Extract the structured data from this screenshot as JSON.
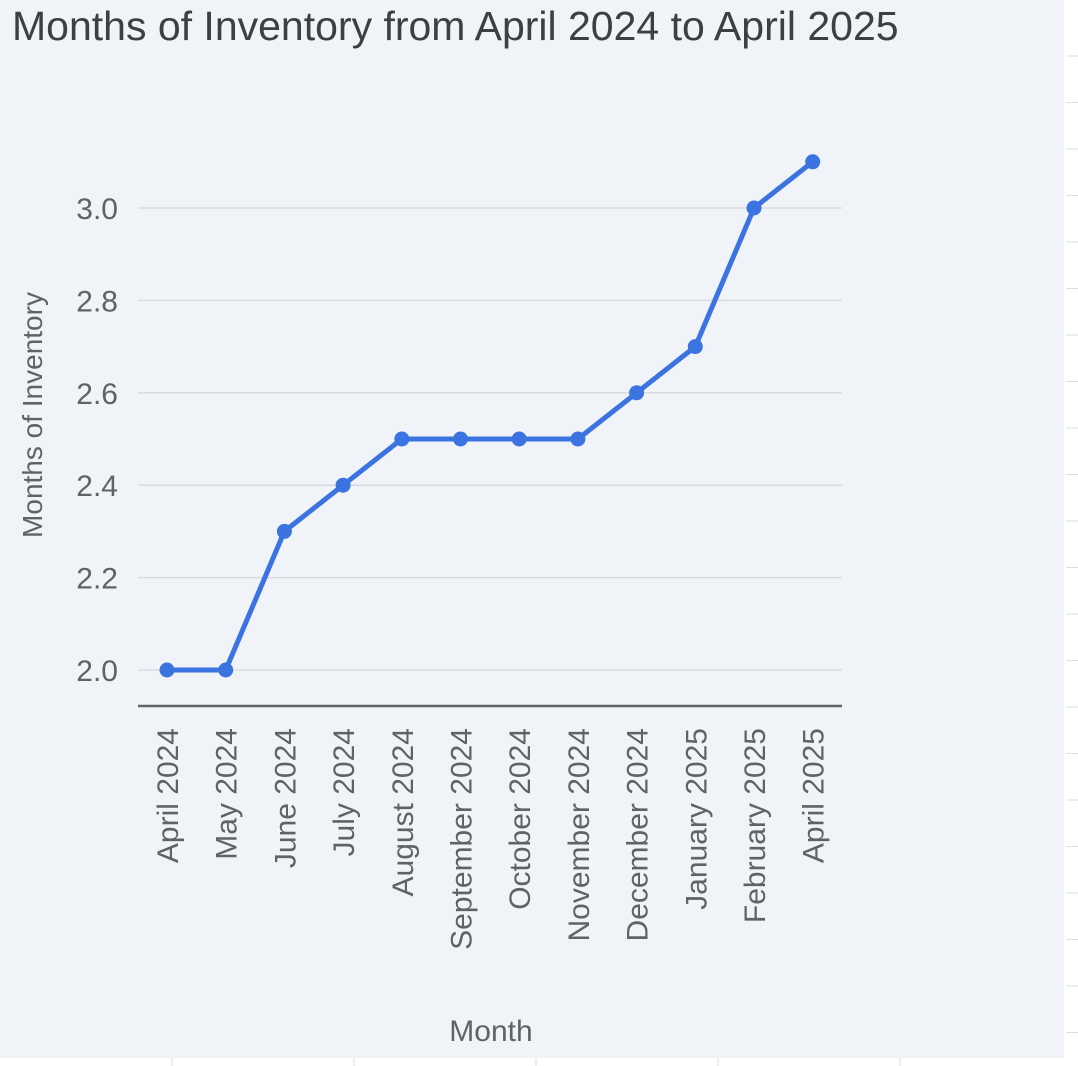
{
  "chart_data": {
    "type": "line",
    "title": "Months of Inventory from April 2024 to April 2025",
    "xlabel": "Month",
    "ylabel": "Months of Inventory",
    "categories": [
      "April 2024",
      "May 2024",
      "June 2024",
      "July 2024",
      "August 2024",
      "September 2024",
      "October 2024",
      "November 2024",
      "December 2024",
      "January 2025",
      "February 2025",
      "April 2025"
    ],
    "series": [
      {
        "values": [
          2.0,
          2.0,
          2.3,
          2.4,
          2.5,
          2.5,
          2.5,
          2.5,
          2.6,
          2.7,
          3.0,
          3.1
        ],
        "color": "#3b74e0"
      }
    ],
    "yticks": [
      "2.0",
      "2.2",
      "2.4",
      "2.6",
      "2.8",
      "3.0"
    ],
    "ytick_values": [
      2.0,
      2.2,
      2.4,
      2.6,
      2.8,
      3.0
    ],
    "ylim": [
      1.925,
      3.2
    ],
    "grid": true,
    "legend": "none",
    "colors": {
      "background": "#f0f4f9",
      "gridline": "#d5d8dc",
      "axis": "#5f6368",
      "text": "#5f6368",
      "title": "#3c4043"
    }
  }
}
